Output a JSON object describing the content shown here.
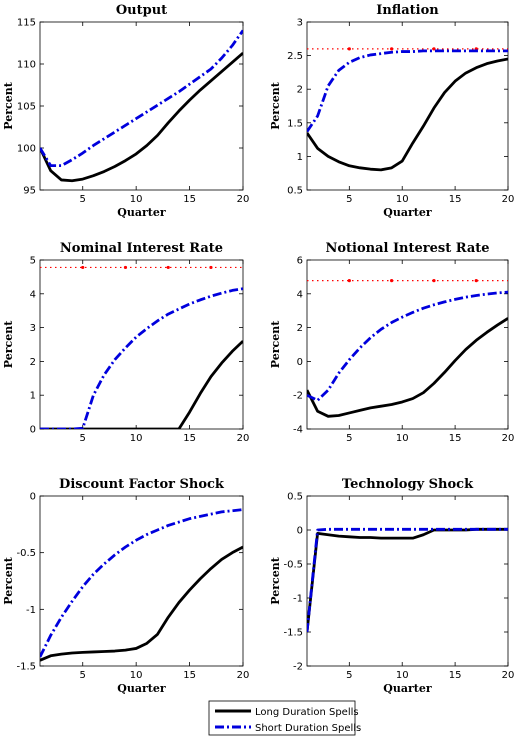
{
  "colors": {
    "long": "#000000",
    "short": "#0000dd",
    "ref": "#ff0000"
  },
  "legend": {
    "location": "bottom-center",
    "items": [
      {
        "key": "long",
        "label": "Long Duration Spells",
        "style": "solid"
      },
      {
        "key": "short",
        "label": "Short Duration Spells",
        "style": "dashdot"
      }
    ]
  },
  "chart_data": [
    {
      "type": "line",
      "title": "Output",
      "xlabel": "Quarter",
      "ylabel": "Percent",
      "xlim": [
        1,
        20
      ],
      "ylim": [
        95,
        115
      ],
      "xticks": [
        5,
        10,
        15,
        20
      ],
      "yticks": [
        95,
        100,
        105,
        110,
        115
      ],
      "x": [
        1,
        2,
        3,
        4,
        5,
        6,
        7,
        8,
        9,
        10,
        11,
        12,
        13,
        14,
        15,
        16,
        17,
        18,
        19,
        20
      ],
      "series": [
        {
          "name": "Long Duration Spells",
          "key": "long",
          "values": [
            100,
            97.3,
            96.2,
            96.1,
            96.3,
            96.7,
            97.2,
            97.8,
            98.5,
            99.3,
            100.3,
            101.5,
            103.0,
            104.4,
            105.7,
            106.9,
            108.0,
            109.1,
            110.2,
            111.3
          ]
        },
        {
          "name": "Short Duration Spells",
          "key": "short",
          "values": [
            100,
            97.9,
            97.9,
            98.6,
            99.4,
            100.3,
            101.1,
            101.9,
            102.7,
            103.5,
            104.3,
            105.1,
            105.9,
            106.7,
            107.6,
            108.5,
            109.4,
            110.7,
            112.2,
            114.0
          ]
        }
      ]
    },
    {
      "type": "line",
      "title": "Inflation",
      "xlabel": "Quarter",
      "ylabel": "Percent",
      "xlim": [
        1,
        20
      ],
      "ylim": [
        0.5,
        3
      ],
      "xticks": [
        5,
        10,
        15,
        20
      ],
      "yticks": [
        0.5,
        1,
        1.5,
        2,
        2.5,
        3
      ],
      "x": [
        1,
        2,
        3,
        4,
        5,
        6,
        7,
        8,
        9,
        10,
        11,
        12,
        13,
        14,
        15,
        16,
        17,
        18,
        19,
        20
      ],
      "reference": {
        "key": "ref",
        "value": 2.6
      },
      "series": [
        {
          "name": "Long Duration Spells",
          "key": "long",
          "values": [
            1.35,
            1.12,
            1.0,
            0.92,
            0.86,
            0.83,
            0.81,
            0.8,
            0.83,
            0.93,
            1.2,
            1.45,
            1.72,
            1.95,
            2.12,
            2.24,
            2.32,
            2.38,
            2.42,
            2.45
          ]
        },
        {
          "name": "Short Duration Spells",
          "key": "short",
          "values": [
            1.37,
            1.6,
            2.05,
            2.28,
            2.4,
            2.47,
            2.51,
            2.53,
            2.55,
            2.56,
            2.56,
            2.57,
            2.57,
            2.57,
            2.57,
            2.57,
            2.57,
            2.57,
            2.57,
            2.57
          ]
        }
      ]
    },
    {
      "type": "line",
      "title": "Nominal Interest Rate",
      "xlabel": "",
      "ylabel": "Percent",
      "xlim": [
        1,
        20
      ],
      "ylim": [
        0,
        5
      ],
      "xticks": [
        5,
        10,
        15,
        20
      ],
      "yticks": [
        0,
        1,
        2,
        3,
        4,
        5
      ],
      "x": [
        1,
        2,
        3,
        4,
        5,
        6,
        7,
        8,
        9,
        10,
        11,
        12,
        13,
        14,
        15,
        16,
        17,
        18,
        19,
        20
      ],
      "reference": {
        "key": "ref",
        "value": 4.78
      },
      "series": [
        {
          "name": "Long Duration Spells",
          "key": "long",
          "values": [
            0,
            0,
            0,
            0,
            0,
            0,
            0,
            0,
            0,
            0,
            0,
            0,
            0,
            0,
            0.5,
            1.05,
            1.55,
            1.95,
            2.3,
            2.6
          ]
        },
        {
          "name": "Short Duration Spells",
          "key": "short",
          "values": [
            0,
            0,
            0,
            0,
            0.02,
            1.0,
            1.6,
            2.05,
            2.4,
            2.72,
            2.97,
            3.2,
            3.4,
            3.55,
            3.7,
            3.82,
            3.93,
            4.02,
            4.1,
            4.15
          ]
        }
      ]
    },
    {
      "type": "line",
      "title": "Notional Interest Rate",
      "xlabel": "",
      "ylabel": "Percent",
      "xlim": [
        1,
        20
      ],
      "ylim": [
        -4,
        6
      ],
      "xticks": [
        5,
        10,
        15,
        20
      ],
      "yticks": [
        -4,
        -2,
        0,
        2,
        4,
        6
      ],
      "x": [
        1,
        2,
        3,
        4,
        5,
        6,
        7,
        8,
        9,
        10,
        11,
        12,
        13,
        14,
        15,
        16,
        17,
        18,
        19,
        20
      ],
      "reference": {
        "key": "ref",
        "value": 4.78
      },
      "series": [
        {
          "name": "Long Duration Spells",
          "key": "long",
          "values": [
            -1.7,
            -2.95,
            -3.25,
            -3.2,
            -3.05,
            -2.9,
            -2.75,
            -2.65,
            -2.55,
            -2.4,
            -2.2,
            -1.85,
            -1.3,
            -0.65,
            0.05,
            0.7,
            1.25,
            1.72,
            2.15,
            2.55
          ]
        },
        {
          "name": "Short Duration Spells",
          "key": "short",
          "values": [
            -2.0,
            -2.3,
            -1.7,
            -0.7,
            0.1,
            0.8,
            1.4,
            1.9,
            2.3,
            2.62,
            2.9,
            3.15,
            3.35,
            3.52,
            3.67,
            3.8,
            3.9,
            3.98,
            4.05,
            4.1
          ]
        }
      ]
    },
    {
      "type": "line",
      "title": "Discount Factor Shock",
      "xlabel": "Quarter",
      "ylabel": "Percent",
      "xlim": [
        1,
        20
      ],
      "ylim": [
        -1.5,
        0
      ],
      "xticks": [
        5,
        10,
        15,
        20
      ],
      "yticks": [
        -1.5,
        -1,
        -0.5,
        0
      ],
      "x": [
        1,
        2,
        3,
        4,
        5,
        6,
        7,
        8,
        9,
        10,
        11,
        12,
        13,
        14,
        15,
        16,
        17,
        18,
        19,
        20
      ],
      "series": [
        {
          "name": "Long Duration Spells",
          "key": "long",
          "values": [
            -1.45,
            -1.41,
            -1.395,
            -1.385,
            -1.38,
            -1.376,
            -1.372,
            -1.368,
            -1.36,
            -1.345,
            -1.3,
            -1.22,
            -1.07,
            -0.94,
            -0.83,
            -0.73,
            -0.64,
            -0.56,
            -0.5,
            -0.45
          ]
        },
        {
          "name": "Short Duration Spells",
          "key": "short",
          "values": [
            -1.42,
            -1.23,
            -1.07,
            -0.93,
            -0.8,
            -0.69,
            -0.6,
            -0.52,
            -0.45,
            -0.39,
            -0.34,
            -0.3,
            -0.26,
            -0.23,
            -0.2,
            -0.18,
            -0.16,
            -0.14,
            -0.13,
            -0.12
          ]
        }
      ]
    },
    {
      "type": "line",
      "title": "Technology Shock",
      "xlabel": "Quarter",
      "ylabel": "Percent",
      "xlim": [
        1,
        20
      ],
      "ylim": [
        -2,
        0.5
      ],
      "xticks": [
        5,
        10,
        15,
        20
      ],
      "yticks": [
        -2,
        -1.5,
        -1,
        -0.5,
        0,
        0.5
      ],
      "x": [
        1,
        2,
        3,
        4,
        5,
        6,
        7,
        8,
        9,
        10,
        11,
        12,
        13,
        14,
        15,
        16,
        17,
        18,
        19,
        20
      ],
      "series": [
        {
          "name": "Long Duration Spells",
          "key": "long",
          "values": [
            -1.5,
            -0.05,
            -0.07,
            -0.09,
            -0.1,
            -0.11,
            -0.11,
            -0.12,
            -0.12,
            -0.12,
            -0.12,
            -0.07,
            0.0,
            0.0,
            0.0,
            0.0,
            0.01,
            0.01,
            0.01,
            0.01
          ]
        },
        {
          "name": "Short Duration Spells",
          "key": "short",
          "values": [
            -1.5,
            0.0,
            0.01,
            0.01,
            0.01,
            0.01,
            0.01,
            0.01,
            0.01,
            0.01,
            0.01,
            0.01,
            0.01,
            0.01,
            0.01,
            0.01,
            0.01,
            0.01,
            0.01,
            0.01
          ]
        }
      ]
    }
  ]
}
